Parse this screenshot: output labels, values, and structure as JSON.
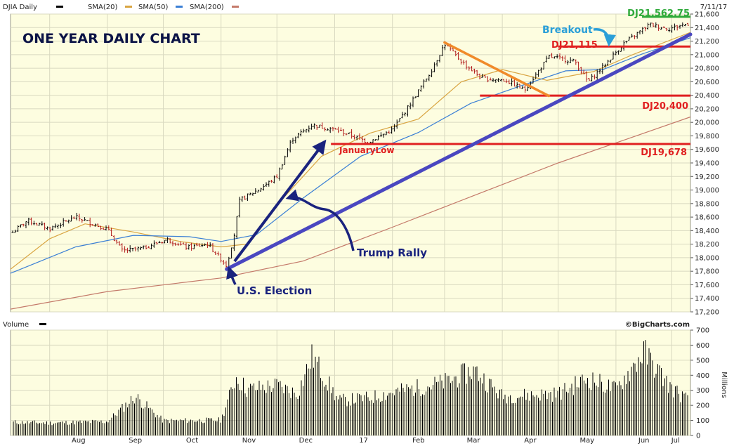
{
  "header": {
    "symbol": "DJIA Daily",
    "sma20": "SMA(20)",
    "sma50": "SMA(50)",
    "sma200": "SMA(200)",
    "date": "7/11/17",
    "last_value": "DJ21,562.75"
  },
  "colors": {
    "panel_bg": "#fdfde0",
    "grid": "#d9d9c0",
    "up_bar": "#000000",
    "down_bar": "#b01818",
    "sma20": "#d9a542",
    "sma50": "#3a7fd5",
    "sma200": "#c47a6a",
    "trendline": "#4a47c0",
    "resistance": "#e02020",
    "wedge": "#f08a2a",
    "arrows": "#1a237e",
    "green": "#2faa3a",
    "breakout_blue": "#2a9fd8"
  },
  "chart_data": [
    {
      "type": "line",
      "title": "ONE YEAR DAILY CHART",
      "y_axis_side": "right",
      "ylim": [
        17200,
        21600
      ],
      "y_ticks": [
        "17,200",
        "17,400",
        "17,600",
        "17,800",
        "18,000",
        "18,200",
        "18,400",
        "18,600",
        "18,800",
        "19,000",
        "19,200",
        "19,400",
        "19,600",
        "19,800",
        "20,000",
        "20,200",
        "20,400",
        "20,600",
        "20,800",
        "21,000",
        "21,200",
        "21,400",
        "21,600"
      ],
      "x_ticks": [
        "Aug",
        "Sep",
        "Oct",
        "Nov",
        "Dec",
        "17",
        "Feb",
        "Mar",
        "Apr",
        "May",
        "Jun",
        "Jul"
      ],
      "x_range": [
        "2016-07-11",
        "2017-07-11"
      ],
      "grid": true,
      "series": [
        {
          "name": "DJIA Daily",
          "style": "ohlc",
          "x": [
            "2016-07-11",
            "2016-07-20",
            "2016-08-01",
            "2016-08-15",
            "2016-09-01",
            "2016-09-09",
            "2016-09-20",
            "2016-10-03",
            "2016-10-14",
            "2016-10-25",
            "2016-11-04",
            "2016-11-08",
            "2016-11-11",
            "2016-11-22",
            "2016-12-01",
            "2016-12-09",
            "2016-12-20",
            "2017-01-03",
            "2017-01-19",
            "2017-02-01",
            "2017-02-10",
            "2017-02-22",
            "2017-03-01",
            "2017-03-10",
            "2017-03-21",
            "2017-04-03",
            "2017-04-13",
            "2017-04-26",
            "2017-05-10",
            "2017-05-17",
            "2017-05-25",
            "2017-06-05",
            "2017-06-19",
            "2017-06-29",
            "2017-07-11"
          ],
          "values": [
            18350,
            18550,
            18430,
            18600,
            18420,
            18100,
            18140,
            18270,
            18150,
            18200,
            17880,
            18330,
            18850,
            19020,
            19200,
            19750,
            19960,
            19880,
            19710,
            19890,
            20250,
            20770,
            21160,
            20900,
            20650,
            20620,
            20480,
            20970,
            20900,
            20600,
            20820,
            21160,
            21450,
            21380,
            21470
          ]
        },
        {
          "name": "SMA(20)",
          "x": [
            "2016-07-11",
            "2016-08-01",
            "2016-08-20",
            "2016-09-15",
            "2016-10-10",
            "2016-11-01",
            "2016-11-15",
            "2016-12-05",
            "2016-12-25",
            "2017-01-20",
            "2017-02-15",
            "2017-03-10",
            "2017-04-01",
            "2017-04-25",
            "2017-05-20",
            "2017-06-10",
            "2017-07-11"
          ],
          "values": [
            17830,
            18280,
            18500,
            18380,
            18240,
            18160,
            18200,
            18900,
            19500,
            19840,
            20050,
            20600,
            20780,
            20620,
            20750,
            21000,
            21330
          ]
        },
        {
          "name": "SMA(50)",
          "x": [
            "2016-07-11",
            "2016-08-15",
            "2016-09-15",
            "2016-10-15",
            "2016-11-01",
            "2016-11-20",
            "2016-12-15",
            "2017-01-15",
            "2017-02-15",
            "2017-03-15",
            "2017-04-10",
            "2017-05-05",
            "2017-05-25",
            "2017-06-15",
            "2017-07-11"
          ],
          "values": [
            17770,
            18160,
            18330,
            18310,
            18240,
            18340,
            18880,
            19500,
            19850,
            20280,
            20530,
            20760,
            20780,
            21010,
            21250
          ]
        },
        {
          "name": "SMA(200)",
          "x": [
            "2016-07-11",
            "2016-09-01",
            "2016-11-01",
            "2016-12-15",
            "2017-02-01",
            "2017-03-15",
            "2017-05-01",
            "2017-07-11"
          ],
          "values": [
            17240,
            17500,
            17700,
            17950,
            18450,
            18900,
            19400,
            20080
          ]
        },
        {
          "name": "Uptrend line",
          "style": "trendline",
          "x": [
            "2016-11-04",
            "2017-07-11"
          ],
          "values": [
            17830,
            21300
          ]
        }
      ],
      "horizontal_levels": [
        {
          "label": "DJ21,562.75",
          "value": 21560,
          "from": "2017-06-15",
          "to": "2017-07-11"
        },
        {
          "label": "DJ21,115",
          "value": 21120,
          "from": "2017-05-01",
          "to": "2017-07-11"
        },
        {
          "label": "DJ20,400",
          "value": 20395,
          "from": "2017-03-20",
          "to": "2017-07-11"
        },
        {
          "label": "DJ19,678",
          "value": 19680,
          "from": "2016-12-30",
          "to": "2017-07-11"
        }
      ],
      "annotations": {
        "breakout": "Breakout",
        "january_low": "JanuaryLow",
        "trump_rally": "Trump Rally",
        "us_election": "U.S. Election"
      }
    },
    {
      "type": "bar",
      "title": "Volume",
      "ylabel": "Millions",
      "ylim": [
        0,
        700
      ],
      "y_ticks": [
        "0",
        "100",
        "200",
        "300",
        "400",
        "500",
        "600",
        "700"
      ],
      "x": [
        "2016-07-11",
        "2016-08-01",
        "2016-09-01",
        "2016-09-16",
        "2016-10-01",
        "2016-11-01",
        "2016-11-09",
        "2016-11-15",
        "2016-12-01",
        "2016-12-12",
        "2016-12-20",
        "2017-01-03",
        "2017-01-20",
        "2017-02-01",
        "2017-03-01",
        "2017-03-17",
        "2017-04-01",
        "2017-05-01",
        "2017-05-17",
        "2017-06-01",
        "2017-06-16",
        "2017-06-30",
        "2017-07-11"
      ],
      "values": [
        95,
        90,
        100,
        280,
        105,
        110,
        420,
        330,
        360,
        300,
        570,
        250,
        270,
        310,
        380,
        470,
        280,
        300,
        410,
        330,
        600,
        350,
        240
      ]
    }
  ],
  "footer": {
    "credit": "©BigCharts.com"
  }
}
